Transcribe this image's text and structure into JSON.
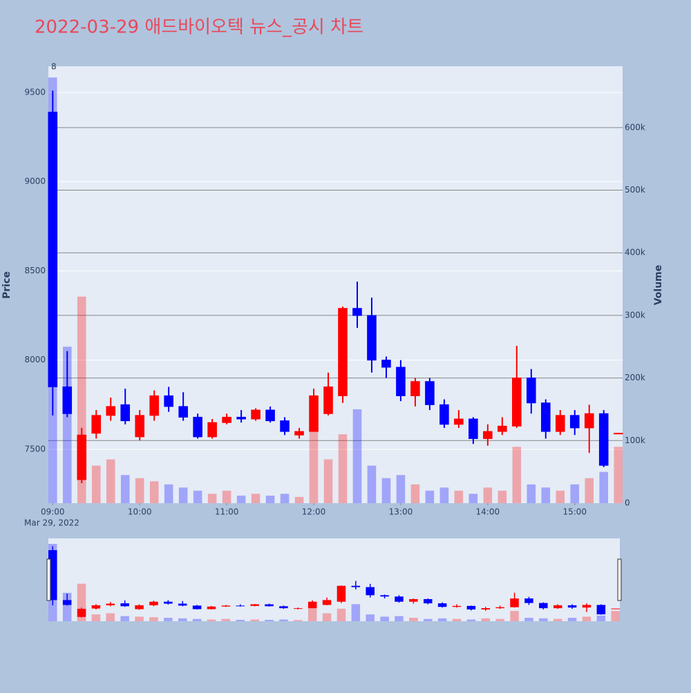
{
  "chart_data": {
    "type": "candlestick",
    "title": "2022-03-29 애드바이오텍 뉴스_공시 차트",
    "title_color": "#e8485a",
    "ylabel": "Price",
    "y2label": "Volume",
    "date_label": "Mar 29, 2022",
    "annotation": "8",
    "colors": {
      "increasing": "#ff0000",
      "decreasing": "#0000ff"
    },
    "rangeslider": true,
    "x": [
      "2022-03-29 09:00",
      "2022-03-29 09:10",
      "2022-03-29 09:20",
      "2022-03-29 09:30",
      "2022-03-29 09:40",
      "2022-03-29 09:50",
      "2022-03-29 10:00",
      "2022-03-29 10:10",
      "2022-03-29 10:20",
      "2022-03-29 10:30",
      "2022-03-29 10:40",
      "2022-03-29 10:50",
      "2022-03-29 11:00",
      "2022-03-29 11:10",
      "2022-03-29 11:20",
      "2022-03-29 11:30",
      "2022-03-29 11:40",
      "2022-03-29 11:50",
      "2022-03-29 12:00",
      "2022-03-29 12:10",
      "2022-03-29 12:20",
      "2022-03-29 12:30",
      "2022-03-29 12:40",
      "2022-03-29 12:50",
      "2022-03-29 13:00",
      "2022-03-29 13:10",
      "2022-03-29 13:20",
      "2022-03-29 13:30",
      "2022-03-29 13:40",
      "2022-03-29 13:50",
      "2022-03-29 14:00",
      "2022-03-29 14:10",
      "2022-03-29 14:20",
      "2022-03-29 14:30",
      "2022-03-29 14:40",
      "2022-03-29 14:50",
      "2022-03-29 15:00",
      "2022-03-29 15:10",
      "2022-03-29 15:20",
      "2022-03-29 15:30"
    ],
    "open": [
      9390,
      7850,
      7330,
      7590,
      7690,
      7750,
      7570,
      7690,
      7800,
      7740,
      7680,
      7570,
      7650,
      7680,
      7670,
      7720,
      7660,
      7580,
      7600,
      7700,
      7800,
      8290,
      8250,
      8000,
      7960,
      7800,
      7880,
      7750,
      7640,
      7670,
      7560,
      7600,
      7630,
      7900,
      7760,
      7600,
      7690,
      7620,
      7700,
      7590
    ],
    "high": [
      9510,
      8050,
      7620,
      7720,
      7790,
      7840,
      7720,
      7830,
      7850,
      7820,
      7700,
      7670,
      7700,
      7720,
      7730,
      7740,
      7680,
      7620,
      7840,
      7930,
      8300,
      8440,
      8350,
      8020,
      8000,
      7900,
      7900,
      7780,
      7720,
      7680,
      7640,
      7680,
      8080,
      7950,
      7780,
      7720,
      7720,
      7750,
      7720,
      7590
    ],
    "low": [
      7690,
      7680,
      7310,
      7560,
      7660,
      7640,
      7550,
      7660,
      7710,
      7660,
      7560,
      7560,
      7640,
      7650,
      7660,
      7650,
      7580,
      7560,
      7600,
      7690,
      7760,
      8180,
      7930,
      7900,
      7770,
      7740,
      7720,
      7620,
      7620,
      7530,
      7520,
      7580,
      7620,
      7700,
      7560,
      7580,
      7580,
      7480,
      7400,
      7590
    ],
    "close": [
      7850,
      7700,
      7580,
      7690,
      7740,
      7660,
      7690,
      7800,
      7740,
      7680,
      7570,
      7650,
      7680,
      7670,
      7720,
      7660,
      7600,
      7600,
      7800,
      7850,
      8290,
      8250,
      8000,
      7960,
      7800,
      7880,
      7750,
      7640,
      7670,
      7560,
      7600,
      7630,
      7900,
      7760,
      7600,
      7690,
      7620,
      7700,
      7410,
      7590
    ],
    "volume": [
      680000,
      250000,
      330000,
      60000,
      70000,
      45000,
      40000,
      35000,
      30000,
      25000,
      20000,
      15000,
      20000,
      12000,
      15000,
      12000,
      15000,
      10000,
      120000,
      70000,
      110000,
      150000,
      60000,
      40000,
      45000,
      30000,
      20000,
      25000,
      20000,
      15000,
      25000,
      20000,
      90000,
      30000,
      25000,
      20000,
      30000,
      40000,
      50000,
      90000
    ],
    "xlim": [
      "2022-03-29 08:57",
      "2022-03-29 15:33"
    ],
    "xticks": [
      {
        "value": "2022-03-29 09:00",
        "label": "09:00"
      },
      {
        "value": "2022-03-29 10:00",
        "label": "10:00"
      },
      {
        "value": "2022-03-29 11:00",
        "label": "11:00"
      },
      {
        "value": "2022-03-29 12:00",
        "label": "12:00"
      },
      {
        "value": "2022-03-29 13:00",
        "label": "13:00"
      },
      {
        "value": "2022-03-29 14:00",
        "label": "14:00"
      },
      {
        "value": "2022-03-29 15:00",
        "label": "15:00"
      }
    ],
    "ylim": [
      7198,
      9647
    ],
    "yticks": [
      7500,
      8000,
      8500,
      9000,
      9500
    ],
    "y2lim": [
      0,
      698000
    ],
    "y2ticks": [
      0,
      {
        "value": 100000,
        "label": "100k"
      },
      {
        "value": 200000,
        "label": "200k"
      },
      {
        "value": 300000,
        "label": "300k"
      },
      {
        "value": 400000,
        "label": "400k"
      },
      {
        "value": 500000,
        "label": "500k"
      },
      {
        "value": 600000,
        "label": "600k"
      }
    ],
    "grid": true
  }
}
